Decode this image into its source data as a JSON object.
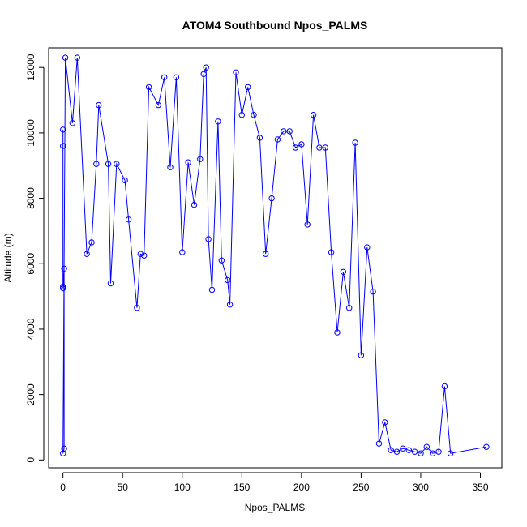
{
  "chart_data": {
    "type": "line",
    "title": "ATOM4 Southbound Npos_PALMS",
    "xlabel": "Npos_PALMS",
    "ylabel": "Altitude (m)",
    "xlim": [
      -12,
      368
    ],
    "ylim": [
      -240,
      12600
    ],
    "xticks": [
      "0",
      "50",
      "100",
      "150",
      "200",
      "250",
      "300",
      "350"
    ],
    "yticks": [
      "0",
      "2000",
      "4000",
      "6000",
      "8000",
      "10000",
      "12000"
    ],
    "grid": false,
    "color": "#0000ff",
    "series": [
      {
        "markers": "open-circle",
        "x": [
          0,
          0,
          0,
          0,
          1,
          1,
          0,
          2,
          8,
          12,
          20,
          24,
          28,
          30,
          38,
          40,
          45,
          52,
          55,
          62,
          65,
          68,
          72,
          80,
          85,
          90,
          95,
          100,
          105,
          110,
          115,
          118,
          120,
          122,
          125,
          130,
          133,
          138,
          140,
          145,
          150,
          155,
          160,
          165,
          170,
          175,
          180,
          185,
          190,
          195,
          200,
          205,
          210,
          215,
          220,
          225,
          230,
          235,
          240,
          245,
          250,
          255,
          260,
          265,
          270,
          275,
          280,
          285,
          290,
          295,
          300,
          305,
          310,
          315,
          320,
          325,
          355
        ],
        "y": [
          10100,
          9600,
          5300,
          5250,
          5850,
          350,
          200,
          12300,
          10300,
          12300,
          6300,
          6650,
          9050,
          10850,
          9050,
          5400,
          9050,
          8550,
          7350,
          4650,
          6300,
          6250,
          11400,
          10850,
          11700,
          8950,
          11700,
          6350,
          9100,
          7800,
          9200,
          11800,
          12000,
          6750,
          5200,
          10350,
          6100,
          5500,
          4750,
          11850,
          10550,
          11400,
          10550,
          9850,
          6300,
          8000,
          9800,
          10050,
          10050,
          9550,
          9650,
          7200,
          10550,
          9550,
          9550,
          6350,
          3900,
          5750,
          4650,
          9700,
          3200,
          6500,
          5150,
          500,
          1150,
          300,
          250,
          350,
          300,
          250,
          200,
          400,
          200,
          250,
          2250,
          200,
          400
        ]
      }
    ]
  }
}
